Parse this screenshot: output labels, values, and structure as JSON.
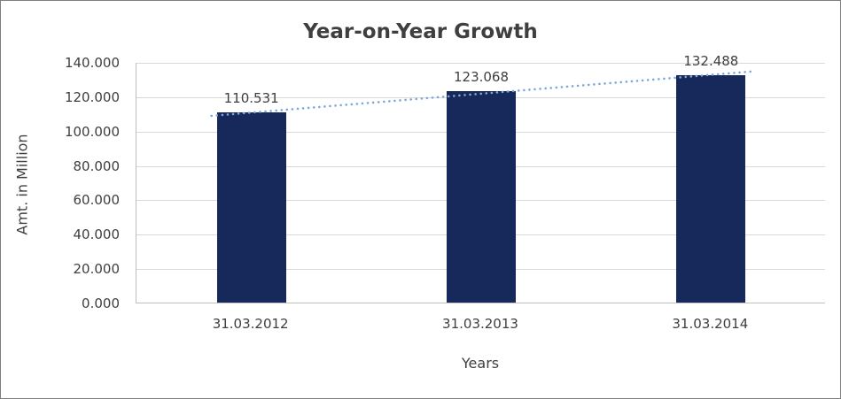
{
  "chart": {
    "title": "Year-on-Year Growth",
    "ylabel": "Amt. in Million",
    "xlabel": "Years"
  },
  "chart_data": {
    "type": "bar",
    "title": "Year-on-Year Growth",
    "xlabel": "Years",
    "ylabel": "Amt. in Million",
    "categories": [
      "31.03.2012",
      "31.03.2013",
      "31.03.2014"
    ],
    "values": [
      110.531,
      123.068,
      132.488
    ],
    "data_labels": [
      "110.531",
      "123.068",
      "132.488"
    ],
    "ylim": [
      0,
      140
    ],
    "ytick_step": 20,
    "ytick_labels": [
      "0.000",
      "20.000",
      "40.000",
      "60.000",
      "80.000",
      "100.000",
      "120.000",
      "140.000"
    ],
    "grid": true,
    "legend": "none",
    "bar_color": "#17295b",
    "gridline_color": "#d9d9d9",
    "axis_color": "#bfbfbf",
    "text_color": "#3f3f3f",
    "trendline": {
      "type": "linear",
      "style": "dotted",
      "color": "#7da7d9"
    }
  }
}
